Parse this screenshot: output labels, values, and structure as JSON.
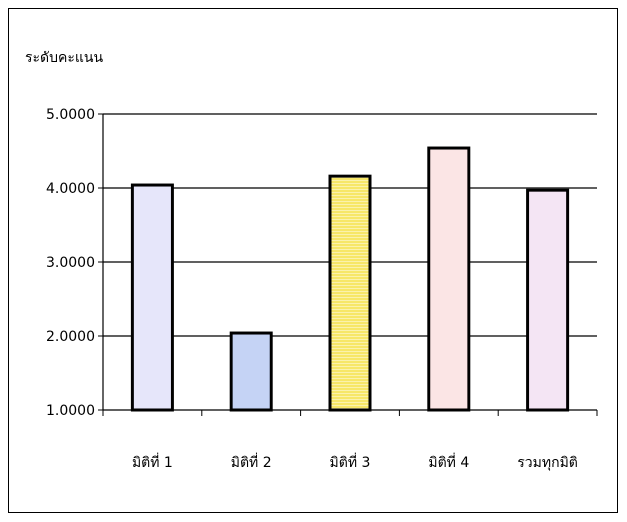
{
  "chart_data": {
    "type": "bar",
    "title": "",
    "ylabel": "ระดับคะแนน",
    "xlabel": "",
    "categories": [
      "มิติที่ 1",
      "มิติที่ 2",
      "มิติที่ 3",
      "มิติที่ 4",
      "รวมทุกมิติ"
    ],
    "values": [
      4.04,
      2.04,
      4.16,
      4.54,
      3.97
    ],
    "ylim": [
      1.0,
      5.0
    ],
    "yticks": [
      "1.0000",
      "2.0000",
      "3.0000",
      "4.0000",
      "5.0000"
    ],
    "grid": true,
    "legend": "none",
    "bar_colors": [
      "#c8c8f4",
      "#7f9ee8",
      "#f7e768",
      "#f7c6c6",
      "#e6c6e6"
    ]
  }
}
